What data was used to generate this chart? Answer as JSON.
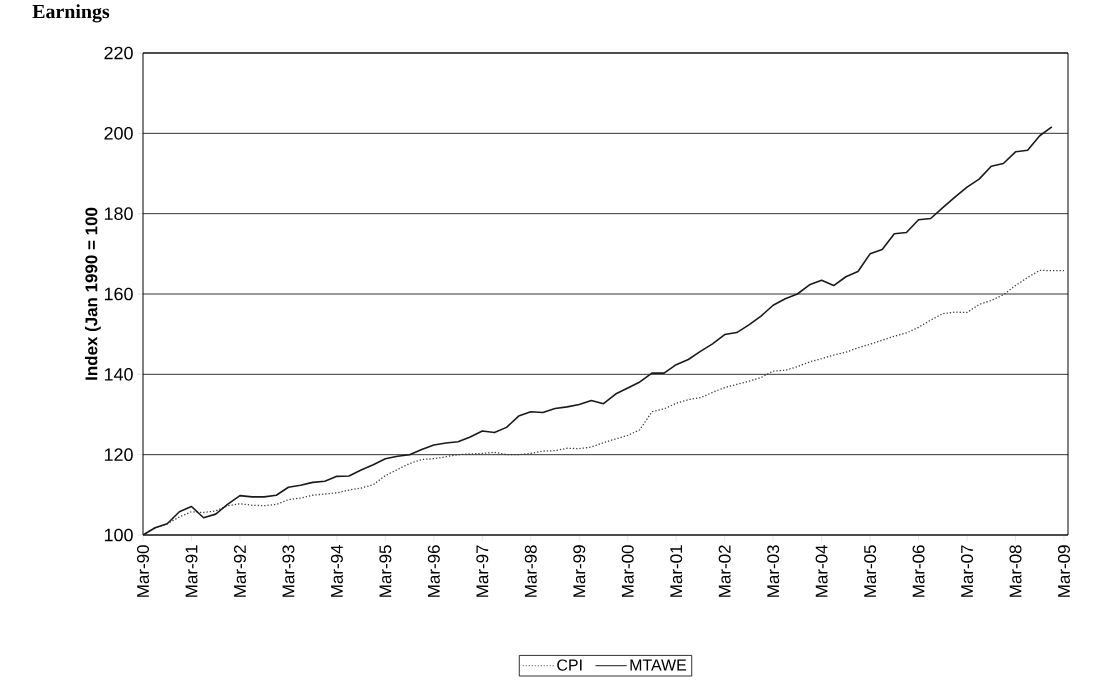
{
  "chart_data": {
    "type": "line",
    "title": "Earnings",
    "ylabel": "Index (Jan 1990 = 100",
    "x": [
      "1990-03",
      "1990-06",
      "1990-09",
      "1990-12",
      "1991-03",
      "1991-06",
      "1991-09",
      "1991-12",
      "1992-03",
      "1992-06",
      "1992-09",
      "1992-12",
      "1993-03",
      "1993-06",
      "1993-09",
      "1993-12",
      "1994-03",
      "1994-06",
      "1994-09",
      "1994-12",
      "1995-03",
      "1995-06",
      "1995-09",
      "1995-12",
      "1996-03",
      "1996-06",
      "1996-09",
      "1996-12",
      "1997-03",
      "1997-06",
      "1997-09",
      "1997-12",
      "1998-03",
      "1998-06",
      "1998-09",
      "1998-12",
      "1999-03",
      "1999-06",
      "1999-09",
      "1999-12",
      "2000-03",
      "2000-06",
      "2000-09",
      "2000-12",
      "2001-03",
      "2001-06",
      "2001-09",
      "2001-12",
      "2002-03",
      "2002-06",
      "2002-09",
      "2002-12",
      "2003-03",
      "2003-06",
      "2003-09",
      "2003-12",
      "2004-03",
      "2004-06",
      "2004-09",
      "2004-12",
      "2005-03",
      "2005-06",
      "2005-09",
      "2005-12",
      "2006-03",
      "2006-06",
      "2006-09",
      "2006-12",
      "2007-03",
      "2007-06",
      "2007-09",
      "2007-12",
      "2008-03",
      "2008-06",
      "2008-09",
      "2008-12",
      "2009-03"
    ],
    "series": [
      {
        "name": "CPI",
        "color": "#3a3a3a",
        "line_style": "dotted",
        "values": [
          100,
          101.8,
          102.8,
          104.5,
          105.8,
          105.6,
          106.0,
          107.3,
          107.8,
          107.4,
          107.3,
          107.6,
          108.8,
          109.2,
          109.9,
          110.2,
          110.5,
          111.2,
          111.7,
          112.5,
          114.8,
          116.3,
          117.8,
          118.8,
          119.0,
          119.5,
          120.0,
          120.2,
          120.3,
          120.6,
          120.0,
          120.0,
          120.3,
          120.9,
          121.0,
          121.6,
          121.5,
          121.9,
          123.0,
          123.9,
          124.8,
          126.2,
          130.7,
          131.4,
          132.8,
          133.7,
          134.2,
          135.5,
          136.7,
          137.5,
          138.3,
          139.2,
          140.8,
          141.0,
          141.9,
          143.1,
          143.9,
          144.8,
          145.5,
          146.6,
          147.5,
          148.5,
          149.5,
          150.3,
          151.7,
          153.5,
          155.1,
          155.5,
          155.4,
          157.4,
          158.4,
          159.8,
          162.1,
          164.1,
          165.9,
          165.8,
          165.8
        ]
      },
      {
        "name": "MTAWE",
        "color": "#1a1a1a",
        "line_style": "solid",
        "values": [
          100,
          101.8,
          102.8,
          105.8,
          107.1,
          104.3,
          105.2,
          107.7,
          109.8,
          109.5,
          109.5,
          109.9,
          111.9,
          112.4,
          113.1,
          113.4,
          114.6,
          114.7,
          116.2,
          117.5,
          119.0,
          119.6,
          120.0,
          121.3,
          122.4,
          122.9,
          123.2,
          124.4,
          125.9,
          125.5,
          126.8,
          129.6,
          130.7,
          130.5,
          131.5,
          131.9,
          132.5,
          133.5,
          132.7,
          135.1,
          136.6,
          138.1,
          140.3,
          140.3,
          142.4,
          143.7,
          145.7,
          147.6,
          149.9,
          150.4,
          152.3,
          154.5,
          157.2,
          158.8,
          160.0,
          162.3,
          163.4,
          162.1,
          164.3,
          165.6,
          170.0,
          171.1,
          175.0,
          175.3,
          178.5,
          178.8,
          181.5,
          184.1,
          186.6,
          188.6,
          191.8,
          192.5,
          195.4,
          195.8,
          199.4,
          201.6,
          null
        ]
      }
    ],
    "xlim": [
      "1990-03",
      "2009-04"
    ],
    "xticks": [
      {
        "value": "1990-03",
        "label": "Mar-90"
      },
      {
        "value": "1991-03",
        "label": "Mar-91"
      },
      {
        "value": "1992-03",
        "label": "Mar-92"
      },
      {
        "value": "1993-03",
        "label": "Mar-93"
      },
      {
        "value": "1994-03",
        "label": "Mar-94"
      },
      {
        "value": "1995-03",
        "label": "Mar-95"
      },
      {
        "value": "1996-03",
        "label": "Mar-96"
      },
      {
        "value": "1997-03",
        "label": "Mar-97"
      },
      {
        "value": "1998-03",
        "label": "Mar-98"
      },
      {
        "value": "1999-03",
        "label": "Mar-99"
      },
      {
        "value": "2000-03",
        "label": "Mar-00"
      },
      {
        "value": "2001-03",
        "label": "Mar-01"
      },
      {
        "value": "2002-03",
        "label": "Mar-02"
      },
      {
        "value": "2003-03",
        "label": "Mar-03"
      },
      {
        "value": "2004-03",
        "label": "Mar-04"
      },
      {
        "value": "2005-03",
        "label": "Mar-05"
      },
      {
        "value": "2006-03",
        "label": "Mar-06"
      },
      {
        "value": "2007-03",
        "label": "Mar-07"
      },
      {
        "value": "2008-03",
        "label": "Mar-08"
      },
      {
        "value": "2009-03",
        "label": "Mar-09"
      }
    ],
    "ylim": [
      100,
      220
    ],
    "yticks": [
      100,
      120,
      140,
      160,
      180,
      200,
      220
    ],
    "grid": "y",
    "legend": "bottom",
    "marker": "none"
  }
}
